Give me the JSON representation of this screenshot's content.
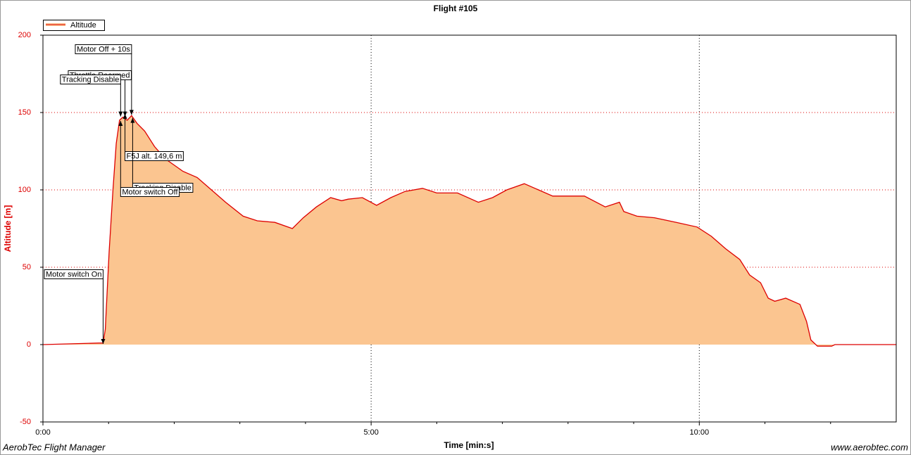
{
  "chart_data": {
    "type": "area",
    "title": "Flight #105",
    "x_label": "Time [min:s]",
    "y_label": "Altitude [m]",
    "footer_left": "AerobTec Flight Manager",
    "footer_right": "www.aerobtec.com",
    "legend": "top-left",
    "grid": true,
    "xlim": [
      0,
      780
    ],
    "ylim": [
      -50,
      200
    ],
    "xticks": [
      {
        "value": 0,
        "label": "0:00"
      },
      {
        "value": 300,
        "label": "5:00"
      },
      {
        "value": 600,
        "label": "10:00"
      }
    ],
    "xminor_ticks": [
      60,
      120,
      180,
      240,
      360,
      420,
      480,
      540,
      660,
      720
    ],
    "yticks": [
      -50,
      0,
      50,
      100,
      150,
      200
    ],
    "x": [
      0,
      51,
      55,
      57,
      60.5,
      64,
      67,
      70,
      73,
      77,
      81,
      86,
      93,
      102,
      112,
      128,
      141,
      154,
      167,
      183,
      196,
      212,
      228,
      238,
      250,
      263,
      273,
      279,
      292,
      305,
      318,
      331,
      347,
      360,
      379,
      398,
      411,
      424,
      440,
      453,
      466,
      482,
      495,
      514,
      527,
      531,
      543,
      559,
      579,
      598,
      611,
      624,
      637,
      646,
      656,
      663,
      669,
      679,
      692,
      698,
      702,
      708,
      721,
      724,
      780
    ],
    "series": [
      {
        "name": "Altitude",
        "color": "#dd0000",
        "fill": "#fbc590",
        "values": [
          0,
          1,
          1,
          10,
          60,
          100,
          130,
          145,
          147,
          145,
          148,
          143,
          138,
          128,
          120,
          112,
          108,
          100,
          92,
          83,
          80,
          79,
          75,
          82,
          89,
          95,
          93,
          94,
          95,
          90,
          95,
          99,
          101,
          98,
          98,
          92,
          95,
          100,
          104,
          100,
          96,
          96,
          96,
          89,
          92,
          86,
          83,
          82,
          79,
          76,
          70,
          62,
          55,
          45,
          40,
          30,
          28,
          30,
          26,
          15,
          3,
          -1,
          -1,
          0,
          0
        ]
      }
    ],
    "annotations": [
      {
        "text": "Motor switch On",
        "x": 55,
        "y": 0
      },
      {
        "text": "Throttle Rearmed",
        "x": 75,
        "y": 147
      },
      {
        "text": "Tracking Disable",
        "x": 71,
        "y": 147
      },
      {
        "text": "Motor Off + 10s",
        "x": 81,
        "y": 148
      },
      {
        "text": "F5J alt. 149,6 m",
        "x": 75,
        "y": 149.6
      },
      {
        "text": "Tracking Disable",
        "x": 82,
        "y": 147
      },
      {
        "text": "Motor switch Off",
        "x": 71,
        "y": 145
      }
    ]
  }
}
